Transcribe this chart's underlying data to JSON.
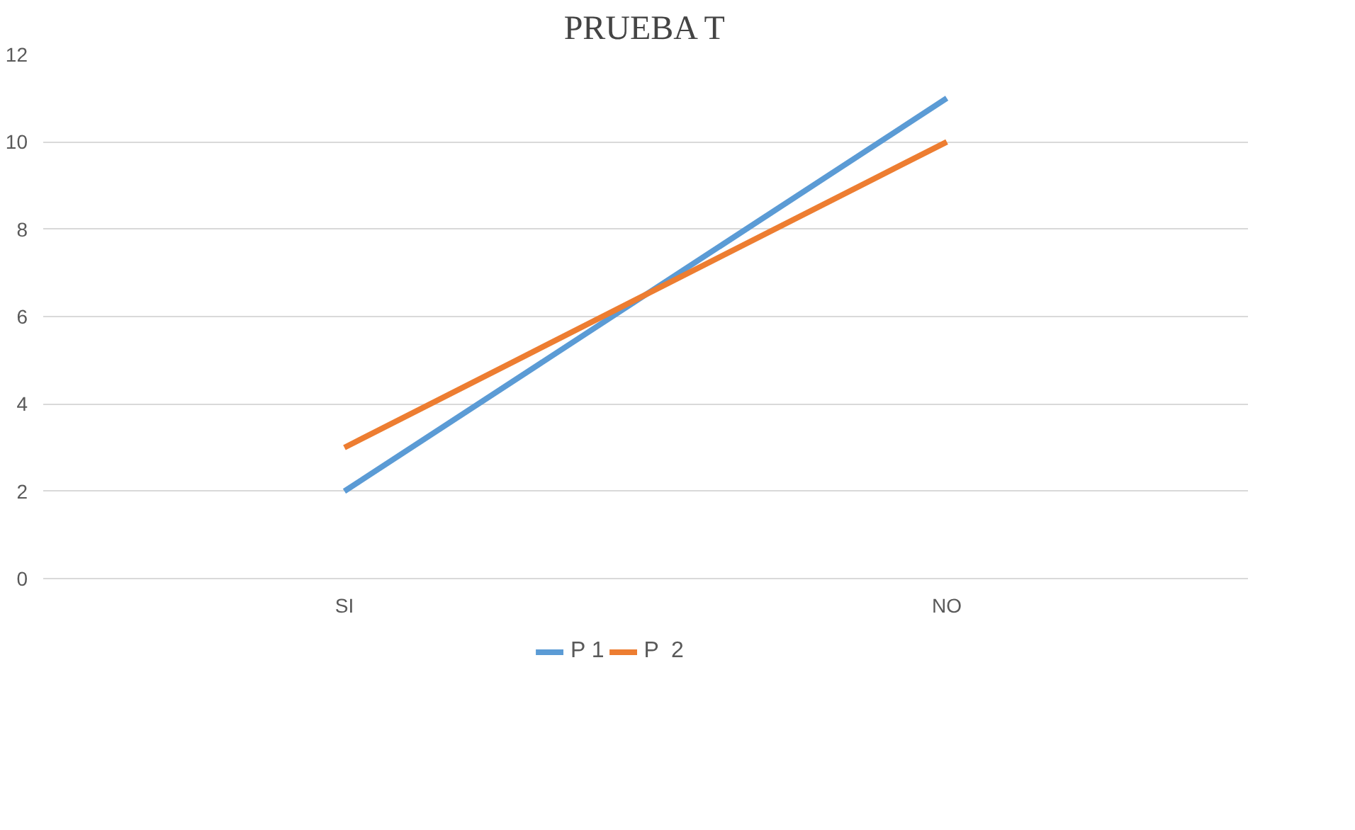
{
  "chart_data": {
    "type": "line",
    "title": "PRUEBA T",
    "categories": [
      "SI",
      "NO"
    ],
    "series": [
      {
        "name": "P 1",
        "color": "#5b9bd5",
        "values": [
          2,
          11
        ]
      },
      {
        "name": "P  2",
        "color": "#ed7d31",
        "values": [
          3,
          10
        ]
      }
    ],
    "ylim": [
      0,
      12
    ],
    "yticks": [
      0,
      2,
      4,
      6,
      8,
      10,
      12
    ],
    "grid": "y",
    "legend": "bottom",
    "marker": "none",
    "line_style": "solid"
  }
}
